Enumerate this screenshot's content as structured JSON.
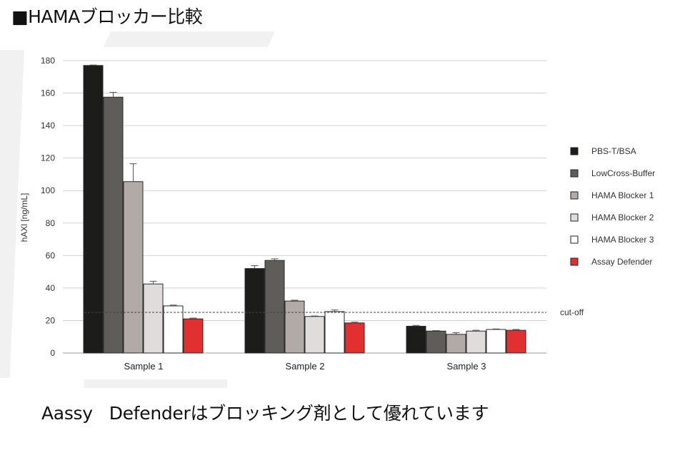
{
  "page_title": "■HAMAブロッカー比較",
  "caption": "Aassy   Defenderはブロッキング剤として優れています",
  "colors": {
    "PBS-T/BSA": "#1c1c1a",
    "LowCross-Buffer": "#5f5d5a",
    "HAMA Blocker 1": "#b2aaa6",
    "HAMA Blocker 2": "#e0dcdc",
    "HAMA Blocker 3": "#ffffff",
    "Assay Defender": "#e03030"
  },
  "chart_data": {
    "type": "bar",
    "ylabel": "hAXl [ng/mL]",
    "xlabel": "",
    "ylim": [
      0,
      180
    ],
    "yticks": [
      0,
      20,
      40,
      60,
      80,
      100,
      120,
      140,
      160,
      180
    ],
    "categories": [
      "Sample 1",
      "Sample 2",
      "Sample 3"
    ],
    "series": [
      {
        "name": "PBS-T/BSA",
        "values": [
          177,
          52,
          16.5
        ],
        "errors": [
          0.3,
          1.8,
          0.5
        ]
      },
      {
        "name": "LowCross-Buffer",
        "values": [
          157.5,
          57,
          13.5
        ],
        "errors": [
          3,
          1,
          0.3
        ]
      },
      {
        "name": "HAMA Blocker 1",
        "values": [
          105.5,
          32,
          11.5
        ],
        "errors": [
          11,
          0.5,
          1
        ]
      },
      {
        "name": "HAMA Blocker 2",
        "values": [
          42.5,
          22.5,
          13.5
        ],
        "errors": [
          1.7,
          0.3,
          0.5
        ]
      },
      {
        "name": "HAMA Blocker 3",
        "values": [
          29,
          25.5,
          14.5
        ],
        "errors": [
          0.5,
          1,
          0.3
        ]
      },
      {
        "name": "Assay Defender",
        "values": [
          21,
          18.5,
          14
        ],
        "errors": [
          0.5,
          0.5,
          0.5
        ]
      }
    ],
    "cutoff": {
      "value": 25,
      "label": "cut-off"
    },
    "grid": true,
    "legend_position": "right"
  }
}
